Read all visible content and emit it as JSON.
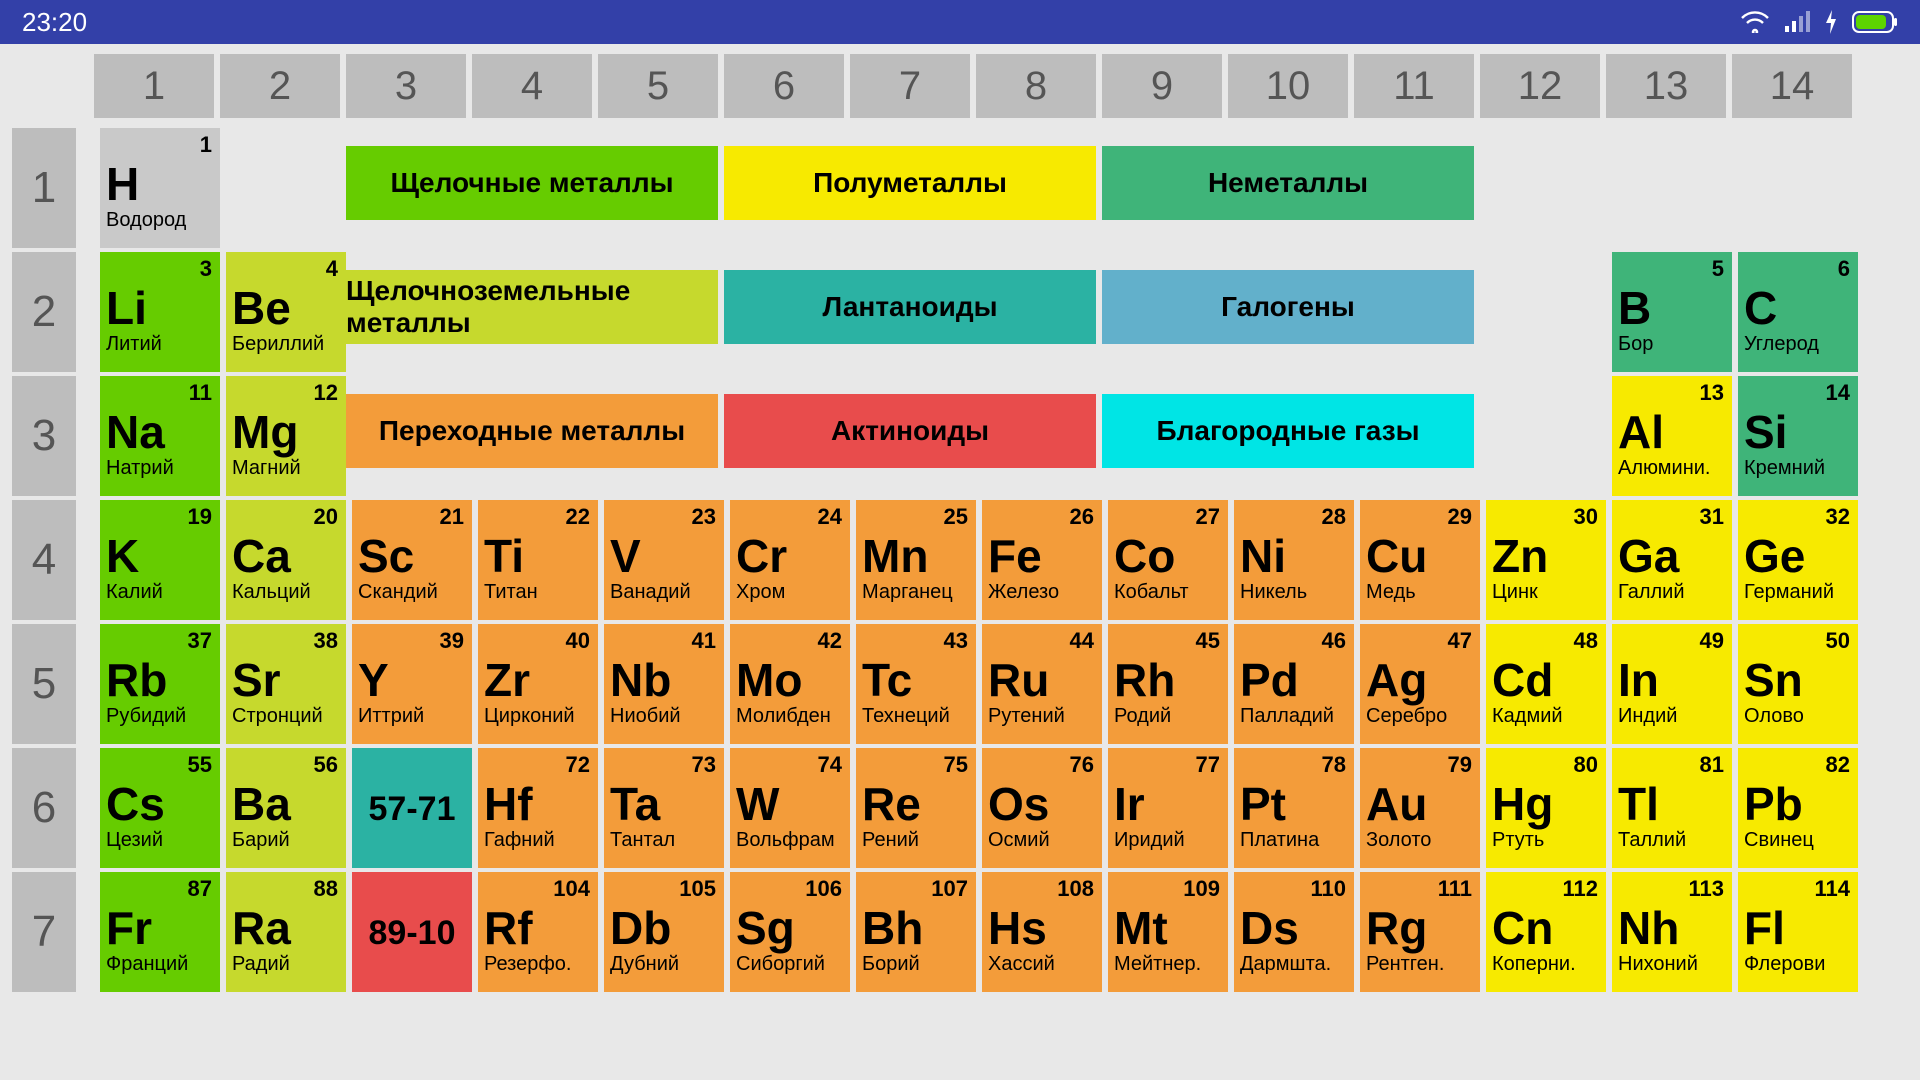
{
  "status": {
    "time": "23:20"
  },
  "colors": {
    "header": "#bdbdbd",
    "bg": "#e8e8e8",
    "status_bar": "#3340a8",
    "categories": {
      "alkali": "#66cc00",
      "alkaline_earth": "#c6d92d",
      "transition": "#f39c3a",
      "post_transition": "#f7ea00",
      "metalloid": "#3fb479",
      "nonmetal": "#3fb479",
      "halogen": "#62b0cb",
      "noble_gas": "#00e5e5",
      "lanthanoid": "#2bb2a3",
      "actinoid": "#e84c4c",
      "hydrogen": "#c9c9c9"
    }
  },
  "legend": [
    {
      "label": "Щелочные металлы",
      "color": "#66cc00",
      "row": 1,
      "colspan_start": 3
    },
    {
      "label": "Полуметаллы",
      "color": "#f7ea00",
      "row": 1,
      "colspan_start": 6
    },
    {
      "label": "Неметаллы",
      "color": "#3fb479",
      "row": 1,
      "colspan_start": 9
    },
    {
      "label": "Щелочноземельные металлы",
      "color": "#c6d92d",
      "row": 2,
      "colspan_start": 3
    },
    {
      "label": "Лантаноиды",
      "color": "#2bb2a3",
      "row": 2,
      "colspan_start": 6
    },
    {
      "label": "Галогены",
      "color": "#62b0cb",
      "row": 2,
      "colspan_start": 9
    },
    {
      "label": "Переходные металлы",
      "color": "#f39c3a",
      "row": 3,
      "colspan_start": 3
    },
    {
      "label": "Актиноиды",
      "color": "#e84c4c",
      "row": 3,
      "colspan_start": 6
    },
    {
      "label": "Благородные газы",
      "color": "#00e5e5",
      "row": 3,
      "colspan_start": 9
    }
  ],
  "groups": [
    "1",
    "2",
    "3",
    "4",
    "5",
    "6",
    "7",
    "8",
    "9",
    "10",
    "11",
    "12",
    "13",
    "14"
  ],
  "periods": [
    "1",
    "2",
    "3",
    "4",
    "5",
    "6",
    "7"
  ],
  "rows": [
    [
      {
        "n": "1",
        "s": "H",
        "name": "Водород",
        "cat": "hydrogen"
      }
    ],
    [
      {
        "n": "3",
        "s": "Li",
        "name": "Литий",
        "cat": "alkali"
      },
      {
        "n": "4",
        "s": "Be",
        "name": "Бериллий",
        "cat": "alkaline_earth"
      },
      null,
      null,
      null,
      null,
      null,
      null,
      null,
      null,
      null,
      null,
      {
        "n": "5",
        "s": "B",
        "name": "Бор",
        "cat": "metalloid"
      },
      {
        "n": "6",
        "s": "C",
        "name": "Углерод",
        "cat": "metalloid"
      }
    ],
    [
      {
        "n": "11",
        "s": "Na",
        "name": "Натрий",
        "cat": "alkali"
      },
      {
        "n": "12",
        "s": "Mg",
        "name": "Магний",
        "cat": "alkaline_earth"
      },
      null,
      null,
      null,
      null,
      null,
      null,
      null,
      null,
      null,
      null,
      {
        "n": "13",
        "s": "Al",
        "name": "Алюмини.",
        "cat": "post_transition"
      },
      {
        "n": "14",
        "s": "Si",
        "name": "Кремний",
        "cat": "metalloid"
      }
    ],
    [
      {
        "n": "19",
        "s": "K",
        "name": "Калий",
        "cat": "alkali"
      },
      {
        "n": "20",
        "s": "Ca",
        "name": "Кальций",
        "cat": "alkaline_earth"
      },
      {
        "n": "21",
        "s": "Sc",
        "name": "Скандий",
        "cat": "transition"
      },
      {
        "n": "22",
        "s": "Ti",
        "name": "Титан",
        "cat": "transition"
      },
      {
        "n": "23",
        "s": "V",
        "name": "Ванадий",
        "cat": "transition"
      },
      {
        "n": "24",
        "s": "Cr",
        "name": "Хром",
        "cat": "transition"
      },
      {
        "n": "25",
        "s": "Mn",
        "name": "Марганец",
        "cat": "transition"
      },
      {
        "n": "26",
        "s": "Fe",
        "name": "Железо",
        "cat": "transition"
      },
      {
        "n": "27",
        "s": "Co",
        "name": "Кобальт",
        "cat": "transition"
      },
      {
        "n": "28",
        "s": "Ni",
        "name": "Никель",
        "cat": "transition"
      },
      {
        "n": "29",
        "s": "Cu",
        "name": "Медь",
        "cat": "transition"
      },
      {
        "n": "30",
        "s": "Zn",
        "name": "Цинк",
        "cat": "post_transition"
      },
      {
        "n": "31",
        "s": "Ga",
        "name": "Галлий",
        "cat": "post_transition"
      },
      {
        "n": "32",
        "s": "Ge",
        "name": "Германий",
        "cat": "post_transition"
      }
    ],
    [
      {
        "n": "37",
        "s": "Rb",
        "name": "Рубидий",
        "cat": "alkali"
      },
      {
        "n": "38",
        "s": "Sr",
        "name": "Стронций",
        "cat": "alkaline_earth"
      },
      {
        "n": "39",
        "s": "Y",
        "name": "Иттрий",
        "cat": "transition"
      },
      {
        "n": "40",
        "s": "Zr",
        "name": "Цирконий",
        "cat": "transition"
      },
      {
        "n": "41",
        "s": "Nb",
        "name": "Ниобий",
        "cat": "transition"
      },
      {
        "n": "42",
        "s": "Mo",
        "name": "Молибден",
        "cat": "transition"
      },
      {
        "n": "43",
        "s": "Tc",
        "name": "Технеций",
        "cat": "transition"
      },
      {
        "n": "44",
        "s": "Ru",
        "name": "Рутений",
        "cat": "transition"
      },
      {
        "n": "45",
        "s": "Rh",
        "name": "Родий",
        "cat": "transition"
      },
      {
        "n": "46",
        "s": "Pd",
        "name": "Палладий",
        "cat": "transition"
      },
      {
        "n": "47",
        "s": "Ag",
        "name": "Серебро",
        "cat": "transition"
      },
      {
        "n": "48",
        "s": "Cd",
        "name": "Кадмий",
        "cat": "post_transition"
      },
      {
        "n": "49",
        "s": "In",
        "name": "Индий",
        "cat": "post_transition"
      },
      {
        "n": "50",
        "s": "Sn",
        "name": "Олово",
        "cat": "post_transition"
      }
    ],
    [
      {
        "n": "55",
        "s": "Cs",
        "name": "Цезий",
        "cat": "alkali"
      },
      {
        "n": "56",
        "s": "Ba",
        "name": "Барий",
        "cat": "alkaline_earth"
      },
      {
        "range": "57-71",
        "cat": "lanthanoid"
      },
      {
        "n": "72",
        "s": "Hf",
        "name": "Гафний",
        "cat": "transition"
      },
      {
        "n": "73",
        "s": "Ta",
        "name": "Тантал",
        "cat": "transition"
      },
      {
        "n": "74",
        "s": "W",
        "name": "Вольфрам",
        "cat": "transition"
      },
      {
        "n": "75",
        "s": "Re",
        "name": "Рений",
        "cat": "transition"
      },
      {
        "n": "76",
        "s": "Os",
        "name": "Осмий",
        "cat": "transition"
      },
      {
        "n": "77",
        "s": "Ir",
        "name": "Иридий",
        "cat": "transition"
      },
      {
        "n": "78",
        "s": "Pt",
        "name": "Платина",
        "cat": "transition"
      },
      {
        "n": "79",
        "s": "Au",
        "name": "Золото",
        "cat": "transition"
      },
      {
        "n": "80",
        "s": "Hg",
        "name": "Ртуть",
        "cat": "post_transition"
      },
      {
        "n": "81",
        "s": "Tl",
        "name": "Таллий",
        "cat": "post_transition"
      },
      {
        "n": "82",
        "s": "Pb",
        "name": "Свинец",
        "cat": "post_transition"
      }
    ],
    [
      {
        "n": "87",
        "s": "Fr",
        "name": "Франций",
        "cat": "alkali"
      },
      {
        "n": "88",
        "s": "Ra",
        "name": "Радий",
        "cat": "alkaline_earth"
      },
      {
        "range": "89-10",
        "cat": "actinoid"
      },
      {
        "n": "104",
        "s": "Rf",
        "name": "Резерфо.",
        "cat": "transition"
      },
      {
        "n": "105",
        "s": "Db",
        "name": "Дубний",
        "cat": "transition"
      },
      {
        "n": "106",
        "s": "Sg",
        "name": "Сиборгий",
        "cat": "transition"
      },
      {
        "n": "107",
        "s": "Bh",
        "name": "Борий",
        "cat": "transition"
      },
      {
        "n": "108",
        "s": "Hs",
        "name": "Хассий",
        "cat": "transition"
      },
      {
        "n": "109",
        "s": "Mt",
        "name": "Мейтнер.",
        "cat": "transition"
      },
      {
        "n": "110",
        "s": "Ds",
        "name": "Дармшта.",
        "cat": "transition"
      },
      {
        "n": "111",
        "s": "Rg",
        "name": "Рентген.",
        "cat": "transition"
      },
      {
        "n": "112",
        "s": "Cn",
        "name": "Коперни.",
        "cat": "post_transition"
      },
      {
        "n": "113",
        "s": "Nh",
        "name": "Нихоний",
        "cat": "post_transition"
      },
      {
        "n": "114",
        "s": "Fl",
        "name": "Флерови",
        "cat": "post_transition"
      }
    ]
  ]
}
